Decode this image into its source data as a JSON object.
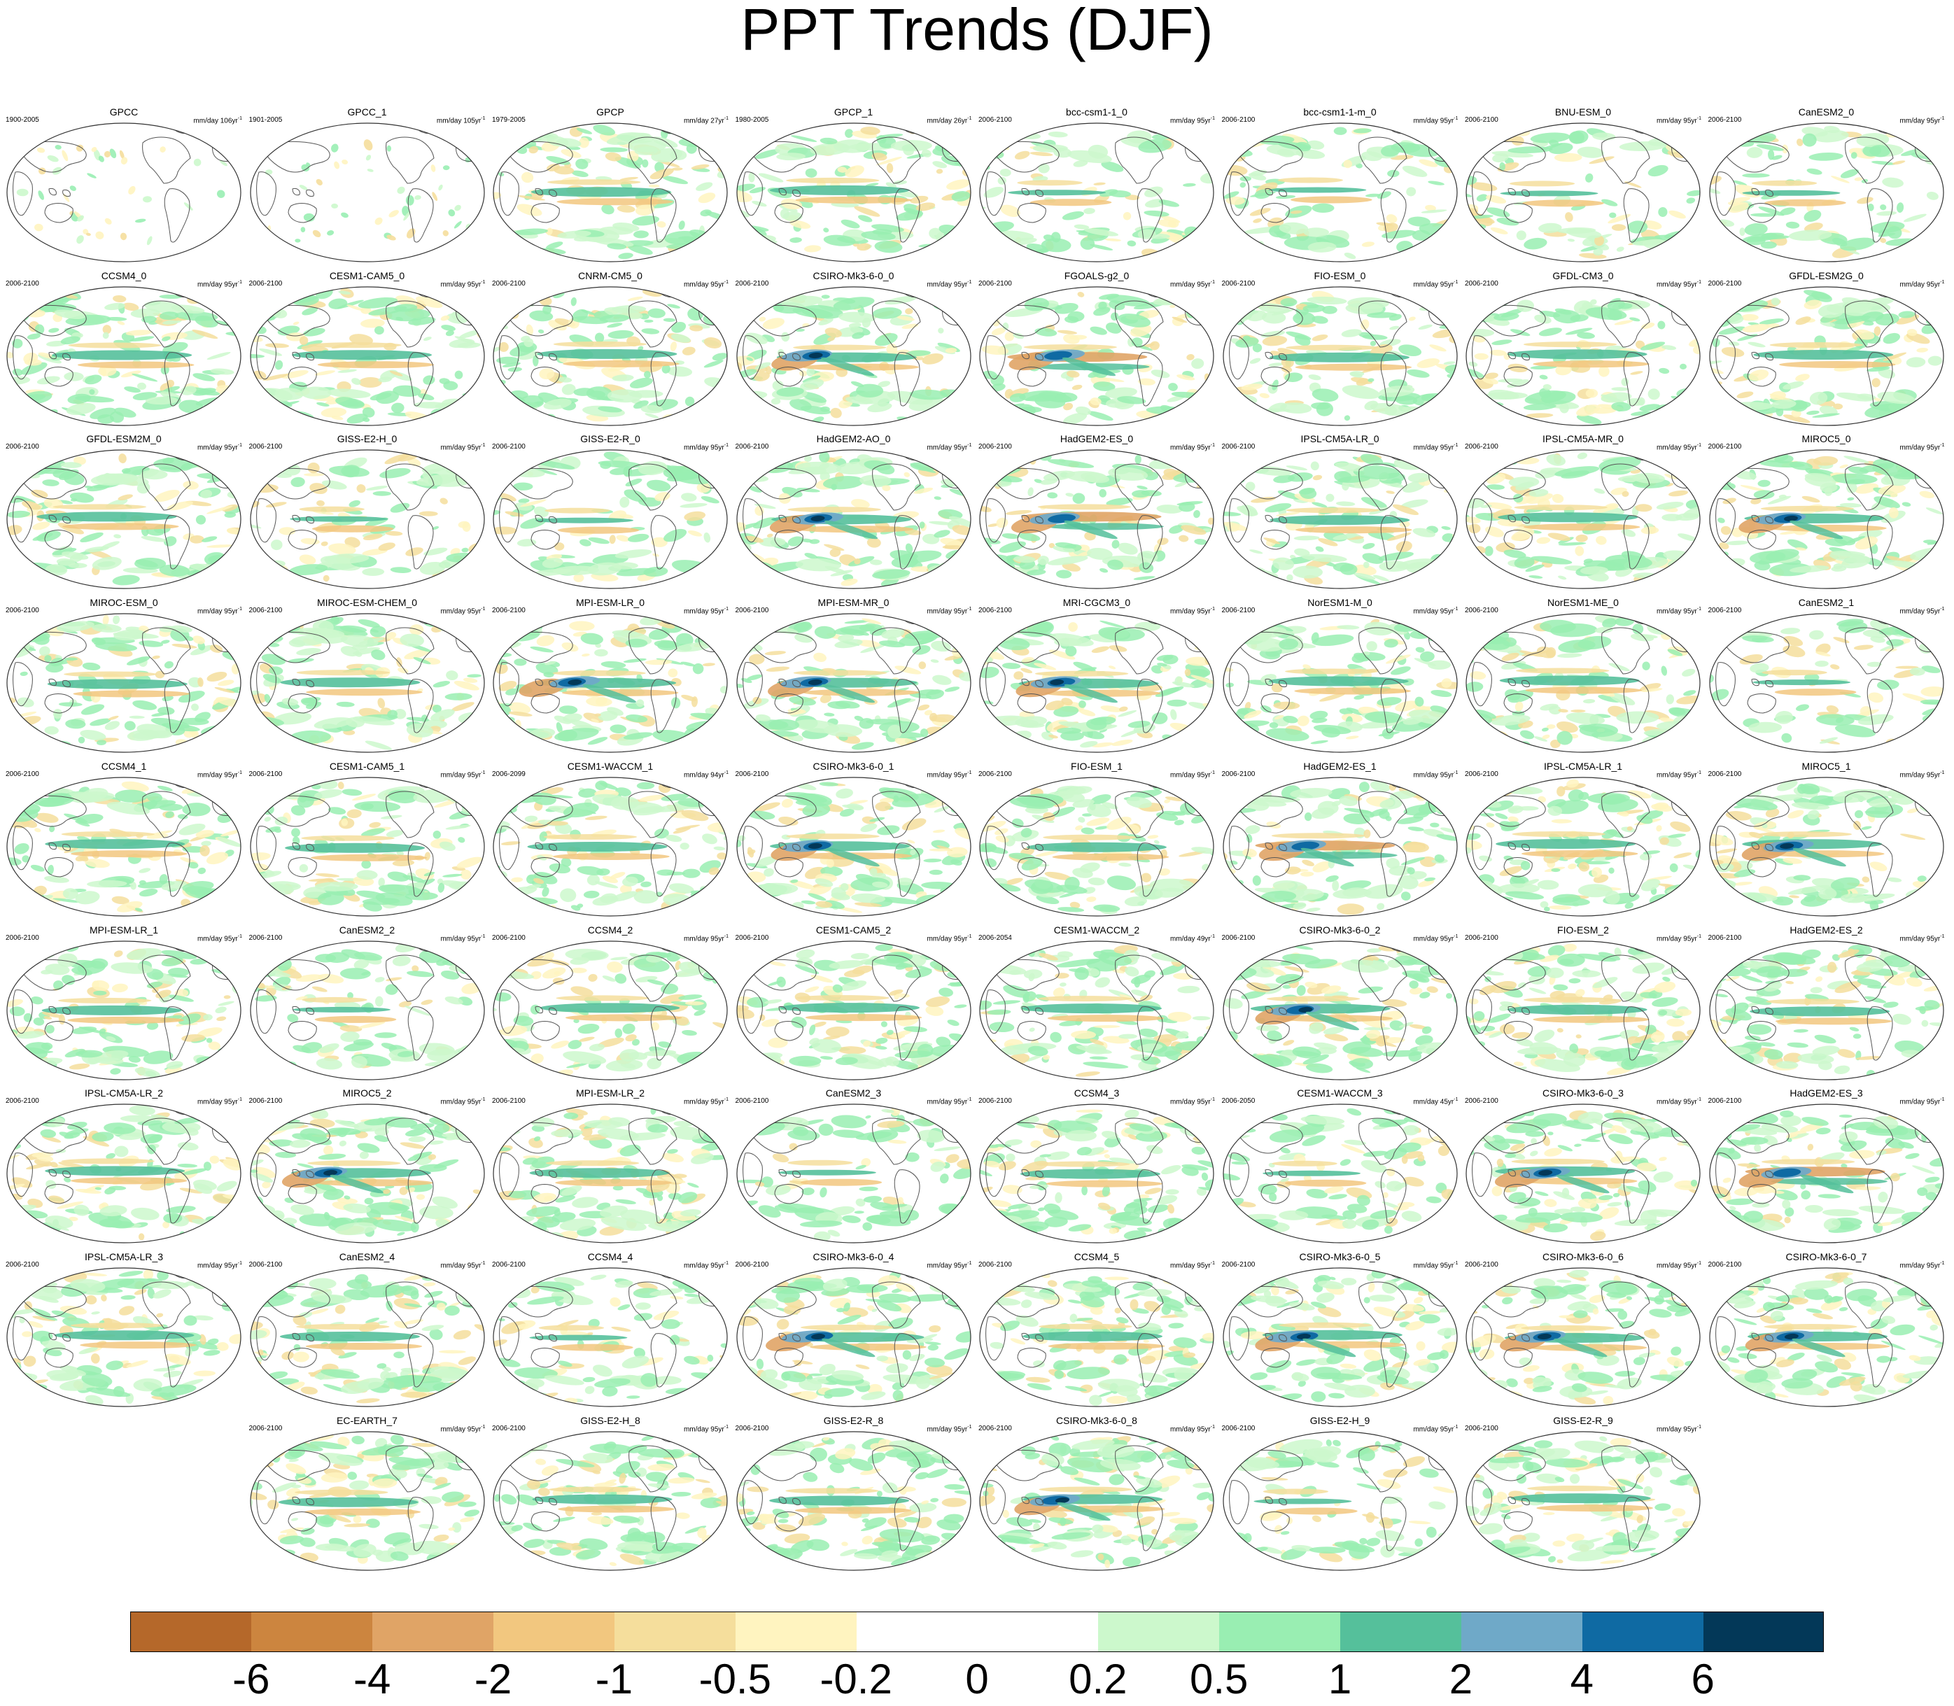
{
  "title": "PPT Trends (DJF)",
  "panels": [
    {
      "name": "GPCC",
      "period": "1900-2005",
      "units": "mm/day 106yr",
      "pattern": "obs"
    },
    {
      "name": "GPCC_1",
      "period": "1901-2005",
      "units": "mm/day 105yr",
      "pattern": "obs"
    },
    {
      "name": "GPCP",
      "period": "1979-2005",
      "units": "mm/day 27yr",
      "pattern": "gpcp"
    },
    {
      "name": "GPCP_1",
      "period": "1980-2005",
      "units": "mm/day 26yr",
      "pattern": "gpcp"
    },
    {
      "name": "bcc-csm1-1_0",
      "period": "2006-2100",
      "units": "mm/day 95yr",
      "pattern": "weak"
    },
    {
      "name": "bcc-csm1-1-m_0",
      "period": "2006-2100",
      "units": "mm/day 95yr",
      "pattern": "weak"
    },
    {
      "name": "BNU-ESM_0",
      "period": "2006-2100",
      "units": "mm/day 95yr",
      "pattern": "weak"
    },
    {
      "name": "CanESM2_0",
      "period": "2006-2100",
      "units": "mm/day 95yr",
      "pattern": "weak"
    },
    {
      "name": "CCSM4_0",
      "period": "2006-2100",
      "units": "mm/day 95yr",
      "pattern": "mid"
    },
    {
      "name": "CESM1-CAM5_0",
      "period": "2006-2100",
      "units": "mm/day 95yr",
      "pattern": "mid"
    },
    {
      "name": "CNRM-CM5_0",
      "period": "2006-2100",
      "units": "mm/day 95yr",
      "pattern": "mid"
    },
    {
      "name": "CSIRO-Mk3-6-0_0",
      "period": "2006-2100",
      "units": "mm/day 95yr",
      "pattern": "strong"
    },
    {
      "name": "FGOALS-g2_0",
      "period": "2006-2100",
      "units": "mm/day 95yr",
      "pattern": "dry"
    },
    {
      "name": "FIO-ESM_0",
      "period": "2006-2100",
      "units": "mm/day 95yr",
      "pattern": "mid"
    },
    {
      "name": "GFDL-CM3_0",
      "period": "2006-2100",
      "units": "mm/day 95yr",
      "pattern": "mid"
    },
    {
      "name": "GFDL-ESM2G_0",
      "period": "2006-2100",
      "units": "mm/day 95yr",
      "pattern": "mid"
    },
    {
      "name": "GFDL-ESM2M_0",
      "period": "2006-2100",
      "units": "mm/day 95yr",
      "pattern": "mid"
    },
    {
      "name": "GISS-E2-H_0",
      "period": "2006-2100",
      "units": "mm/day 95yr",
      "pattern": "weak"
    },
    {
      "name": "GISS-E2-R_0",
      "period": "2006-2100",
      "units": "mm/day 95yr",
      "pattern": "weak"
    },
    {
      "name": "HadGEM2-AO_0",
      "period": "2006-2100",
      "units": "mm/day 95yr",
      "pattern": "strong"
    },
    {
      "name": "HadGEM2-ES_0",
      "period": "2006-2100",
      "units": "mm/day 95yr",
      "pattern": "dry"
    },
    {
      "name": "IPSL-CM5A-LR_0",
      "period": "2006-2100",
      "units": "mm/day 95yr",
      "pattern": "mid"
    },
    {
      "name": "IPSL-CM5A-MR_0",
      "period": "2006-2100",
      "units": "mm/day 95yr",
      "pattern": "mid"
    },
    {
      "name": "MIROC5_0",
      "period": "2006-2100",
      "units": "mm/day 95yr",
      "pattern": "strong"
    },
    {
      "name": "MIROC-ESM_0",
      "period": "2006-2100",
      "units": "mm/day 95yr",
      "pattern": "mid"
    },
    {
      "name": "MIROC-ESM-CHEM_0",
      "period": "2006-2100",
      "units": "mm/day 95yr",
      "pattern": "mid"
    },
    {
      "name": "MPI-ESM-LR_0",
      "period": "2006-2100",
      "units": "mm/day 95yr",
      "pattern": "strong"
    },
    {
      "name": "MPI-ESM-MR_0",
      "period": "2006-2100",
      "units": "mm/day 95yr",
      "pattern": "strong"
    },
    {
      "name": "MRI-CGCM3_0",
      "period": "2006-2100",
      "units": "mm/day 95yr",
      "pattern": "strong"
    },
    {
      "name": "NorESM1-M_0",
      "period": "2006-2100",
      "units": "mm/day 95yr",
      "pattern": "mid"
    },
    {
      "name": "NorESM1-ME_0",
      "period": "2006-2100",
      "units": "mm/day 95yr",
      "pattern": "mid"
    },
    {
      "name": "CanESM2_1",
      "period": "2006-2100",
      "units": "mm/day 95yr",
      "pattern": "weak"
    },
    {
      "name": "CCSM4_1",
      "period": "2006-2100",
      "units": "mm/day 95yr",
      "pattern": "mid"
    },
    {
      "name": "CESM1-CAM5_1",
      "period": "2006-2100",
      "units": "mm/day 95yr",
      "pattern": "mid"
    },
    {
      "name": "CESM1-WACCM_1",
      "period": "2006-2099",
      "units": "mm/day 94yr",
      "pattern": "mid"
    },
    {
      "name": "CSIRO-Mk3-6-0_1",
      "period": "2006-2100",
      "units": "mm/day 95yr",
      "pattern": "strong"
    },
    {
      "name": "FIO-ESM_1",
      "period": "2006-2100",
      "units": "mm/day 95yr",
      "pattern": "mid"
    },
    {
      "name": "HadGEM2-ES_1",
      "period": "2006-2100",
      "units": "mm/day 95yr",
      "pattern": "dry"
    },
    {
      "name": "IPSL-CM5A-LR_1",
      "period": "2006-2100",
      "units": "mm/day 95yr",
      "pattern": "mid"
    },
    {
      "name": "MIROC5_1",
      "period": "2006-2100",
      "units": "mm/day 95yr",
      "pattern": "strong"
    },
    {
      "name": "MPI-ESM-LR_1",
      "period": "2006-2100",
      "units": "mm/day 95yr",
      "pattern": "mid"
    },
    {
      "name": "CanESM2_2",
      "period": "2006-2100",
      "units": "mm/day 95yr",
      "pattern": "weak"
    },
    {
      "name": "CCSM4_2",
      "period": "2006-2100",
      "units": "mm/day 95yr",
      "pattern": "mid"
    },
    {
      "name": "CESM1-CAM5_2",
      "period": "2006-2100",
      "units": "mm/day 95yr",
      "pattern": "mid"
    },
    {
      "name": "CESM1-WACCM_2",
      "period": "2006-2054",
      "units": "mm/day 49yr",
      "pattern": "mid"
    },
    {
      "name": "CSIRO-Mk3-6-0_2",
      "period": "2006-2100",
      "units": "mm/day 95yr",
      "pattern": "strong"
    },
    {
      "name": "FIO-ESM_2",
      "period": "2006-2100",
      "units": "mm/day 95yr",
      "pattern": "mid"
    },
    {
      "name": "HadGEM2-ES_2",
      "period": "2006-2100",
      "units": "mm/day 95yr",
      "pattern": "mid"
    },
    {
      "name": "IPSL-CM5A-LR_2",
      "period": "2006-2100",
      "units": "mm/day 95yr",
      "pattern": "mid"
    },
    {
      "name": "MIROC5_2",
      "period": "2006-2100",
      "units": "mm/day 95yr",
      "pattern": "strong"
    },
    {
      "name": "MPI-ESM-LR_2",
      "period": "2006-2100",
      "units": "mm/day 95yr",
      "pattern": "mid"
    },
    {
      "name": "CanESM2_3",
      "period": "2006-2100",
      "units": "mm/day 95yr",
      "pattern": "weak"
    },
    {
      "name": "CCSM4_3",
      "period": "2006-2100",
      "units": "mm/day 95yr",
      "pattern": "mid"
    },
    {
      "name": "CESM1-WACCM_3",
      "period": "2006-2050",
      "units": "mm/day 45yr",
      "pattern": "weak"
    },
    {
      "name": "CSIRO-Mk3-6-0_3",
      "period": "2006-2100",
      "units": "mm/day 95yr",
      "pattern": "strong"
    },
    {
      "name": "HadGEM2-ES_3",
      "period": "2006-2100",
      "units": "mm/day 95yr",
      "pattern": "dry"
    },
    {
      "name": "IPSL-CM5A-LR_3",
      "period": "2006-2100",
      "units": "mm/day 95yr",
      "pattern": "mid"
    },
    {
      "name": "CanESM2_4",
      "period": "2006-2100",
      "units": "mm/day 95yr",
      "pattern": "mid"
    },
    {
      "name": "CCSM4_4",
      "period": "2006-2100",
      "units": "mm/day 95yr",
      "pattern": "weak"
    },
    {
      "name": "CSIRO-Mk3-6-0_4",
      "period": "2006-2100",
      "units": "mm/day 95yr",
      "pattern": "strong"
    },
    {
      "name": "CCSM4_5",
      "period": "2006-2100",
      "units": "mm/day 95yr",
      "pattern": "mid"
    },
    {
      "name": "CSIRO-Mk3-6-0_5",
      "period": "2006-2100",
      "units": "mm/day 95yr",
      "pattern": "strong"
    },
    {
      "name": "CSIRO-Mk3-6-0_6",
      "period": "2006-2100",
      "units": "mm/day 95yr",
      "pattern": "strong"
    },
    {
      "name": "CSIRO-Mk3-6-0_7",
      "period": "2006-2100",
      "units": "mm/day 95yr",
      "pattern": "strong"
    },
    {
      "name": "EC-EARTH_7",
      "period": "2006-2100",
      "units": "mm/day 95yr",
      "pattern": "mid"
    },
    {
      "name": "GISS-E2-H_8",
      "period": "2006-2100",
      "units": "mm/day 95yr",
      "pattern": "mid"
    },
    {
      "name": "GISS-E2-R_8",
      "period": "2006-2100",
      "units": "mm/day 95yr",
      "pattern": "mid"
    },
    {
      "name": "CSIRO-Mk3-6-0_8",
      "period": "2006-2100",
      "units": "mm/day 95yr",
      "pattern": "strong"
    },
    {
      "name": "GISS-E2-H_9",
      "period": "2006-2100",
      "units": "mm/day 95yr",
      "pattern": "weak"
    },
    {
      "name": "GISS-E2-R_9",
      "period": "2006-2100",
      "units": "mm/day 95yr",
      "pattern": "mid"
    }
  ],
  "colorbar": {
    "colors": [
      "#b5682a",
      "#cc853f",
      "#e0a466",
      "#f2c77f",
      "#f5de9c",
      "#fff4c0",
      "#ffffff",
      "#ffffff",
      "#ccf8cc",
      "#99eeb2",
      "#55c09b",
      "#6fa9c8",
      "#0f6aa3",
      "#033858"
    ],
    "ticks": [
      "-6",
      "-4",
      "-2",
      "-1",
      "-0.5",
      "-0.2",
      "0",
      "0.2",
      "0.5",
      "1",
      "2",
      "4",
      "6"
    ]
  }
}
